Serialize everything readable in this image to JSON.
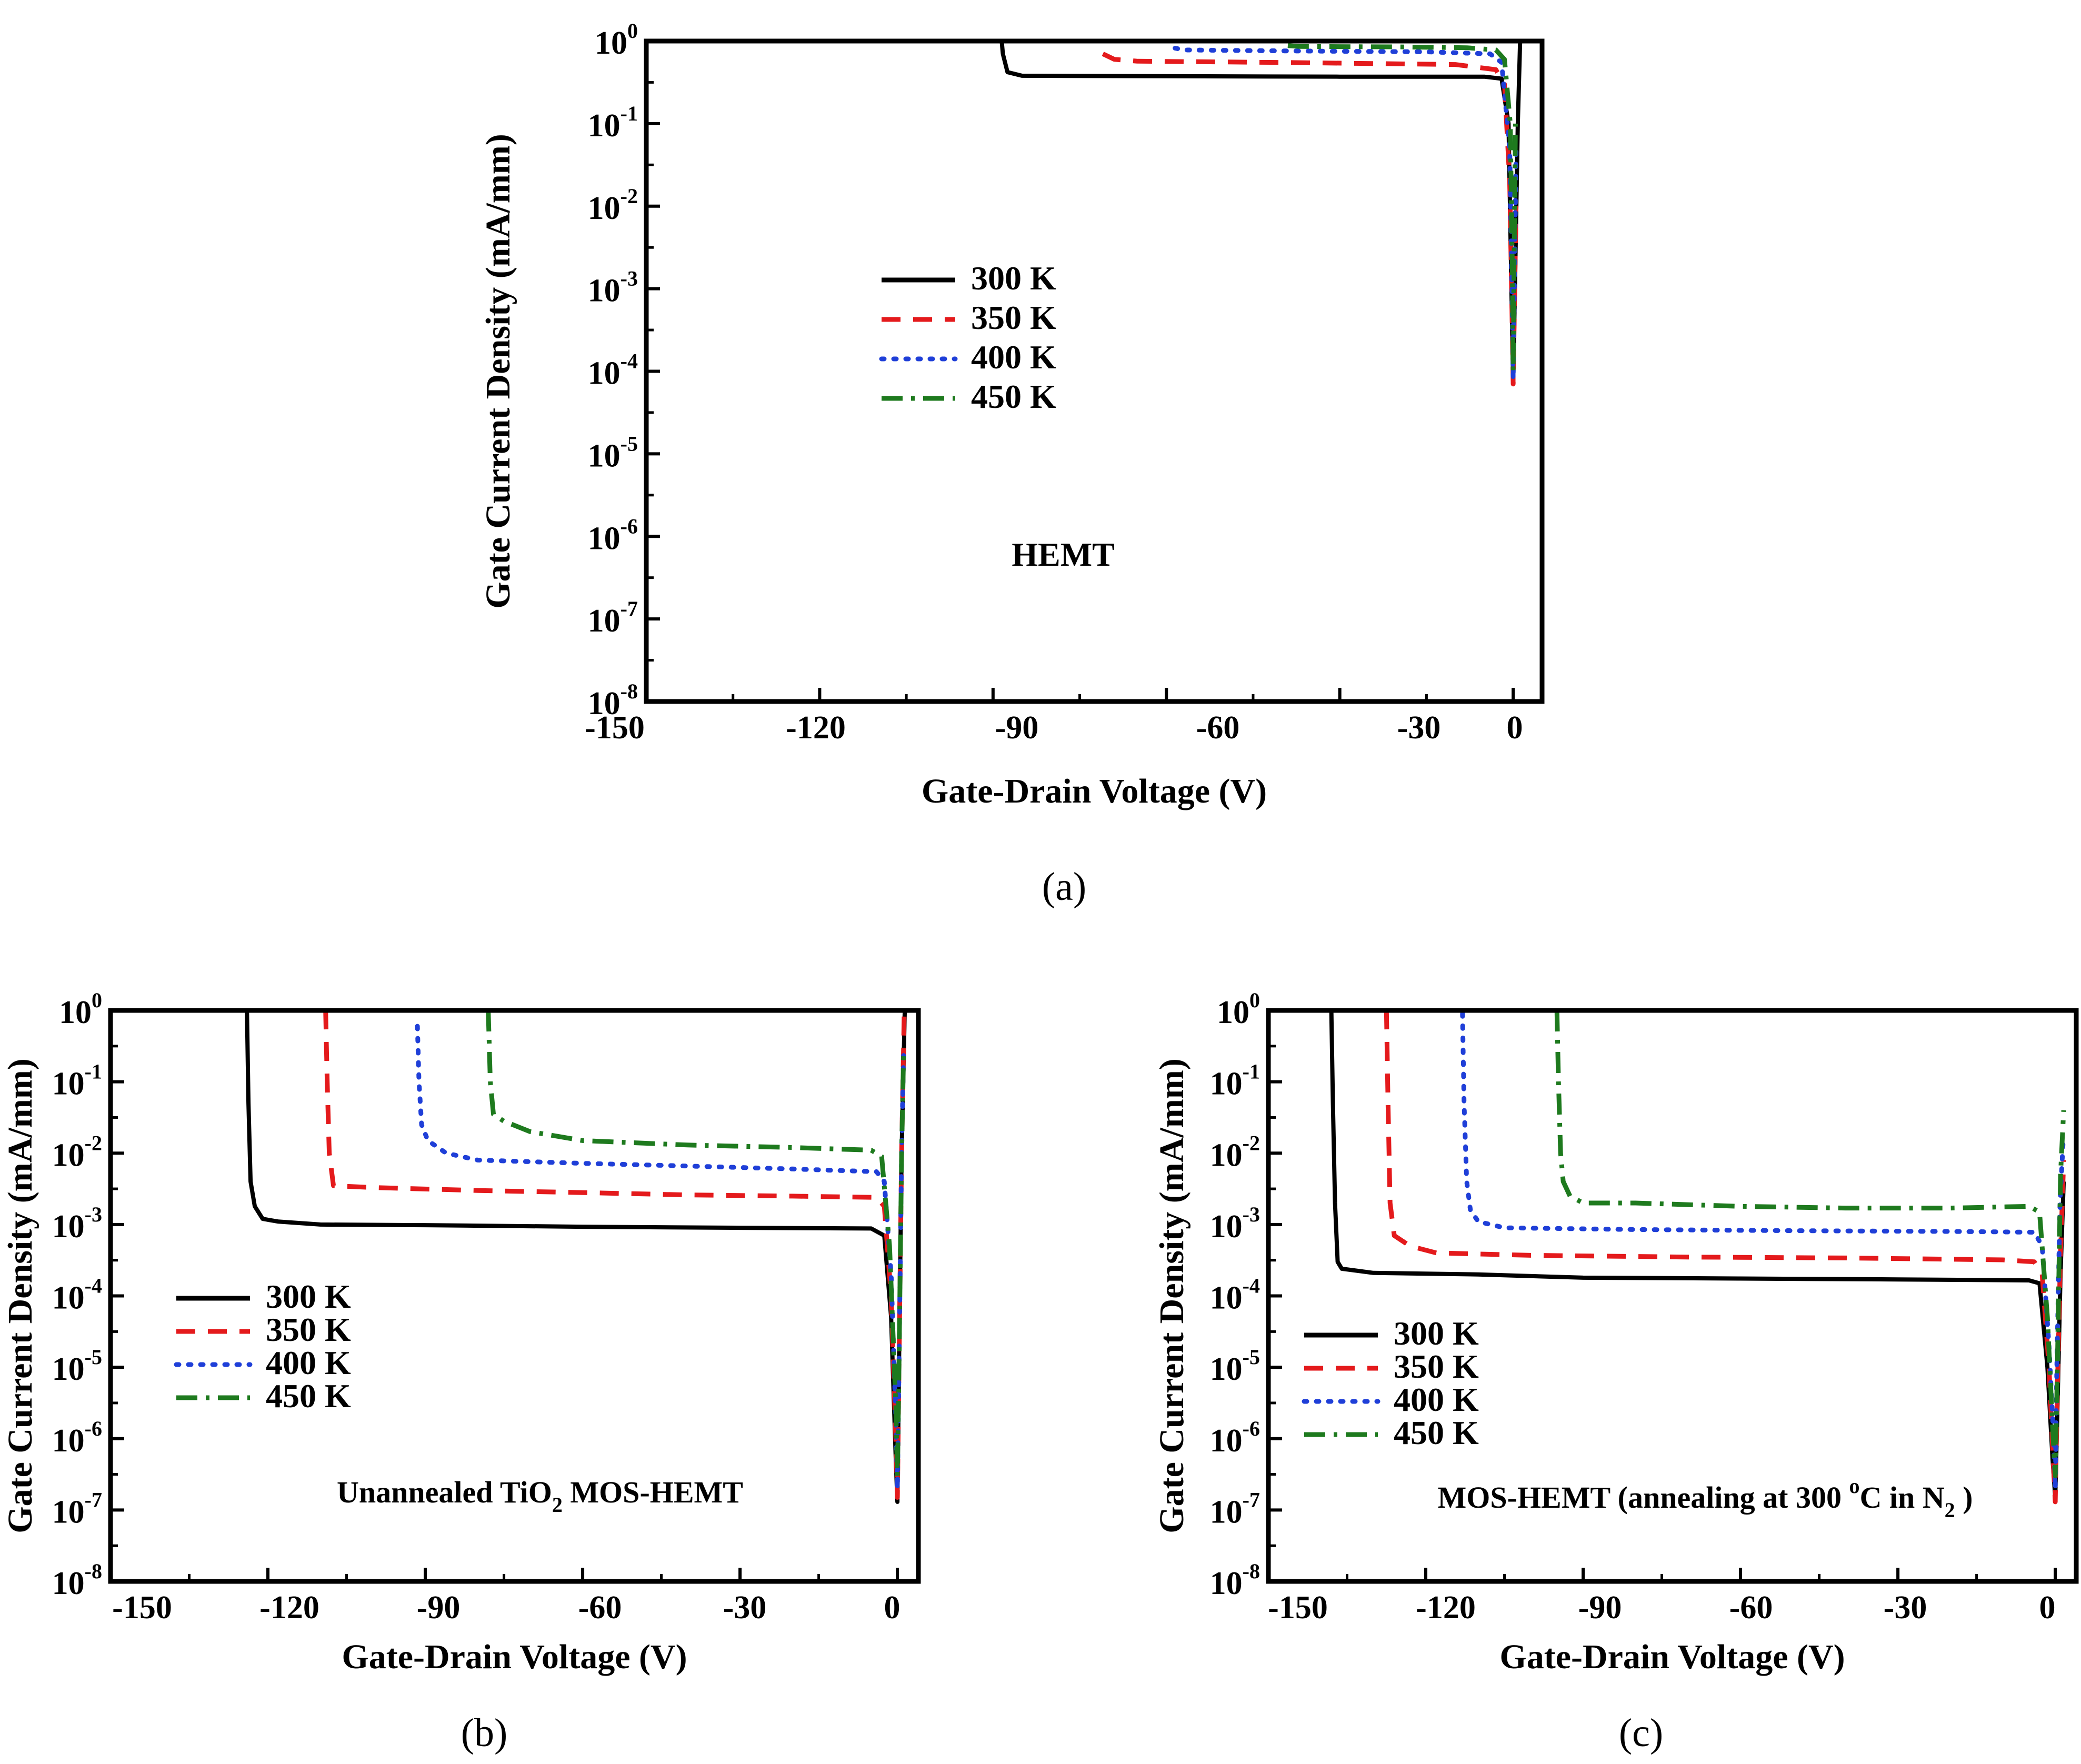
{
  "chart_data": [
    {
      "type": "line",
      "panel": "(a)",
      "annotation": "HEMT",
      "xlabel": "Gate-Drain Voltage (V)",
      "ylabel": "Gate Current Density (mA/mm)",
      "xlim": [
        -150,
        5
      ],
      "ylim_exponent": [
        -8,
        0
      ],
      "y_scale": "log10",
      "x_ticks": [
        "-150",
        "-120",
        "-90",
        "-60",
        "-30",
        "0"
      ],
      "y_ticks": [
        {
          "base": "10",
          "exp": "0"
        },
        {
          "base": "10",
          "exp": "-1"
        },
        {
          "base": "10",
          "exp": "-2"
        },
        {
          "base": "10",
          "exp": "-3"
        },
        {
          "base": "10",
          "exp": "-4"
        },
        {
          "base": "10",
          "exp": "-5"
        },
        {
          "base": "10",
          "exp": "-6"
        },
        {
          "base": "10",
          "exp": "-7"
        },
        {
          "base": "10",
          "exp": "-8"
        }
      ],
      "legend": [
        "300 K",
        "350 K",
        "400 K",
        "450 K"
      ],
      "legend_position": "center",
      "series": [
        {
          "name": "300 K",
          "color": "#000000",
          "style": "solid",
          "points": [
            [
              -88.5,
              1.0
            ],
            [
              -88.3,
              0.7
            ],
            [
              -87.5,
              0.42
            ],
            [
              -85,
              0.38
            ],
            [
              -60,
              0.375
            ],
            [
              -30,
              0.37
            ],
            [
              -5,
              0.37
            ],
            [
              -2,
              0.35
            ],
            [
              -0.8,
              0.1
            ],
            [
              -0.3,
              0.001
            ],
            [
              0,
              7e-05
            ],
            [
              0.3,
              0.001
            ],
            [
              0.8,
              0.1
            ],
            [
              1.2,
              1.0
            ]
          ]
        },
        {
          "name": "350 K",
          "color": "#e41a1c",
          "style": "dashed",
          "points": [
            [
              -71,
              0.7
            ],
            [
              -69,
              0.6
            ],
            [
              -65,
              0.57
            ],
            [
              -40,
              0.55
            ],
            [
              -10,
              0.52
            ],
            [
              -3,
              0.45
            ],
            [
              -1.5,
              0.3
            ],
            [
              -0.6,
              0.02
            ],
            [
              -0.2,
              0.0005
            ],
            [
              0,
              7e-05
            ],
            [
              0.2,
              0.0005
            ],
            [
              0.5,
              0.01
            ]
          ]
        },
        {
          "name": "400 K",
          "color": "#1f3fd8",
          "style": "dotted",
          "points": [
            [
              -58.5,
              0.82
            ],
            [
              -57,
              0.78
            ],
            [
              -40,
              0.76
            ],
            [
              -15,
              0.74
            ],
            [
              -4,
              0.7
            ],
            [
              -2,
              0.55
            ],
            [
              -0.6,
              0.05
            ],
            [
              -0.2,
              0.001
            ],
            [
              0,
              8e-05
            ],
            [
              0.2,
              0.001
            ],
            [
              0.5,
              0.05
            ]
          ]
        },
        {
          "name": "450 K",
          "color": "#1e7a1e",
          "style": "dashdot",
          "points": [
            [
              -39,
              0.88
            ],
            [
              -37,
              0.86
            ],
            [
              -20,
              0.85
            ],
            [
              -8,
              0.83
            ],
            [
              -3,
              0.78
            ],
            [
              -1.5,
              0.6
            ],
            [
              -0.5,
              0.1
            ],
            [
              -0.15,
              0.002
            ],
            [
              0,
              0.0001
            ],
            [
              0.15,
              0.002
            ],
            [
              0.4,
              0.1
            ]
          ]
        }
      ]
    },
    {
      "type": "line",
      "panel": "(b)",
      "annotation_main": "Unannealed TiO",
      "annotation_sub": "2",
      "annotation_tail": " MOS-HEMT",
      "xlabel": "Gate-Drain Voltage (V)",
      "ylabel": "Gate Current Density (mA/mm)",
      "xlim": [
        -150,
        4
      ],
      "ylim_exponent": [
        -8,
        0
      ],
      "y_scale": "log10",
      "x_ticks": [
        "-150",
        "-120",
        "-90",
        "-60",
        "-30",
        "0"
      ],
      "y_ticks": [
        {
          "base": "10",
          "exp": "0"
        },
        {
          "base": "10",
          "exp": "-1"
        },
        {
          "base": "10",
          "exp": "-2"
        },
        {
          "base": "10",
          "exp": "-3"
        },
        {
          "base": "10",
          "exp": "-4"
        },
        {
          "base": "10",
          "exp": "-5"
        },
        {
          "base": "10",
          "exp": "-6"
        },
        {
          "base": "10",
          "exp": "-7"
        },
        {
          "base": "10",
          "exp": "-8"
        }
      ],
      "legend": [
        "300 K",
        "350 K",
        "400 K",
        "450 K"
      ],
      "legend_position": "center-left",
      "series": [
        {
          "name": "300 K",
          "color": "#000000",
          "style": "solid",
          "points": [
            [
              -124,
              1.0
            ],
            [
              -123.7,
              0.05
            ],
            [
              -123.3,
              0.004
            ],
            [
              -122.5,
              0.0018
            ],
            [
              -121,
              0.0012
            ],
            [
              -118,
              0.0011
            ],
            [
              -110,
              0.001
            ],
            [
              -90,
              0.00098
            ],
            [
              -60,
              0.00093
            ],
            [
              -30,
              0.0009
            ],
            [
              -5,
              0.00088
            ],
            [
              -2.5,
              0.0007
            ],
            [
              -1.2,
              5e-05
            ],
            [
              -0.3,
              5e-07
            ],
            [
              0,
              1.3e-07
            ],
            [
              0.3,
              1e-05
            ],
            [
              0.8,
              0.01
            ],
            [
              1.4,
              1.0
            ]
          ]
        },
        {
          "name": "350 K",
          "color": "#e41a1c",
          "style": "dashed",
          "points": [
            [
              -109,
              1.0
            ],
            [
              -108.7,
              0.1
            ],
            [
              -108.3,
              0.01
            ],
            [
              -107.5,
              0.0035
            ],
            [
              -100,
              0.0033
            ],
            [
              -80,
              0.003
            ],
            [
              -60,
              0.0028
            ],
            [
              -40,
              0.0026
            ],
            [
              -20,
              0.0025
            ],
            [
              -4,
              0.0024
            ],
            [
              -2.5,
              0.0018
            ],
            [
              -1.2,
              0.0001
            ],
            [
              -0.3,
              1e-06
            ],
            [
              0,
              1.5e-07
            ],
            [
              0.3,
              1e-05
            ],
            [
              0.8,
              0.01
            ],
            [
              1.3,
              1.0
            ]
          ]
        },
        {
          "name": "400 K",
          "color": "#1f3fd8",
          "style": "dotted",
          "points": [
            [
              -91.5,
              0.6
            ],
            [
              -91.2,
              0.1
            ],
            [
              -90.7,
              0.025
            ],
            [
              -89.5,
              0.015
            ],
            [
              -86,
              0.01
            ],
            [
              -80,
              0.008
            ],
            [
              -60,
              0.0072
            ],
            [
              -40,
              0.0066
            ],
            [
              -20,
              0.006
            ],
            [
              -4,
              0.0055
            ],
            [
              -2.5,
              0.004
            ],
            [
              -1.2,
              0.0002
            ],
            [
              -0.3,
              2e-06
            ],
            [
              0,
              2e-07
            ],
            [
              0.3,
              1e-05
            ],
            [
              0.8,
              0.01
            ],
            [
              1.2,
              0.3
            ]
          ]
        },
        {
          "name": "450 K",
          "color": "#1e7a1e",
          "style": "dashdot",
          "points": [
            [
              -78,
              1.0
            ],
            [
              -77.6,
              0.1
            ],
            [
              -77,
              0.035
            ],
            [
              -75,
              0.028
            ],
            [
              -70,
              0.02
            ],
            [
              -60,
              0.015
            ],
            [
              -40,
              0.013
            ],
            [
              -20,
              0.012
            ],
            [
              -5,
              0.011
            ],
            [
              -3,
              0.009
            ],
            [
              -1.5,
              0.0005
            ],
            [
              -0.3,
              3e-06
            ],
            [
              0,
              3e-07
            ],
            [
              0.3,
              1e-05
            ],
            [
              0.8,
              0.01
            ],
            [
              1.2,
              0.3
            ]
          ]
        }
      ]
    },
    {
      "type": "line",
      "panel": "(c)",
      "annotation_main": "MOS-HEMT (annealing at 300 ",
      "annotation_degree": "o",
      "annotation_mid": "C in N",
      "annotation_sub": "2",
      "annotation_tail": " )",
      "xlabel": "Gate-Drain Voltage (V)",
      "ylabel": "Gate Current Density (mA/mm)",
      "xlim": [
        -150,
        4
      ],
      "ylim_exponent": [
        -8,
        0
      ],
      "y_scale": "log10",
      "x_ticks": [
        "-150",
        "-120",
        "-90",
        "-60",
        "-30",
        "0"
      ],
      "y_ticks": [
        {
          "base": "10",
          "exp": "0"
        },
        {
          "base": "10",
          "exp": "-1"
        },
        {
          "base": "10",
          "exp": "-2"
        },
        {
          "base": "10",
          "exp": "-3"
        },
        {
          "base": "10",
          "exp": "-4"
        },
        {
          "base": "10",
          "exp": "-5"
        },
        {
          "base": "10",
          "exp": "-6"
        },
        {
          "base": "10",
          "exp": "-7"
        },
        {
          "base": "10",
          "exp": "-8"
        }
      ],
      "legend": [
        "300 K",
        "350 K",
        "400 K",
        "450 K"
      ],
      "legend_position": "center-left",
      "series": [
        {
          "name": "300 K",
          "color": "#000000",
          "style": "solid",
          "points": [
            [
              -138,
              1.0
            ],
            [
              -137.7,
              0.05
            ],
            [
              -137.3,
              0.002
            ],
            [
              -136.8,
              0.0003
            ],
            [
              -136,
              0.00024
            ],
            [
              -130,
              0.00021
            ],
            [
              -110,
              0.0002
            ],
            [
              -90,
              0.00018
            ],
            [
              -60,
              0.000175
            ],
            [
              -30,
              0.00017
            ],
            [
              -5,
              0.000165
            ],
            [
              -3,
              0.00015
            ],
            [
              -1.5,
              1e-05
            ],
            [
              -0.5,
              5e-07
            ],
            [
              0,
              1.5e-07
            ],
            [
              0.5,
              5e-06
            ],
            [
              1,
              0.0002
            ],
            [
              1.6,
              0.004
            ]
          ]
        },
        {
          "name": "350 K",
          "color": "#e41a1c",
          "style": "dashed",
          "points": [
            [
              -127.5,
              1.0
            ],
            [
              -127.2,
              0.05
            ],
            [
              -126.8,
              0.002
            ],
            [
              -126,
              0.0007
            ],
            [
              -123,
              0.0005
            ],
            [
              -118,
              0.0004
            ],
            [
              -100,
              0.00037
            ],
            [
              -70,
              0.00035
            ],
            [
              -40,
              0.00034
            ],
            [
              -10,
              0.00032
            ],
            [
              -4,
              0.0003
            ],
            [
              -2.5,
              0.0002
            ],
            [
              -1.2,
              1e-05
            ],
            [
              -0.4,
              5e-07
            ],
            [
              0,
              1.3e-07
            ],
            [
              0.4,
              5e-06
            ],
            [
              1,
              0.0004
            ],
            [
              1.6,
              0.008
            ]
          ]
        },
        {
          "name": "400 K",
          "color": "#1f3fd8",
          "style": "dotted",
          "points": [
            [
              -113,
              0.9
            ],
            [
              -112.7,
              0.05
            ],
            [
              -112.2,
              0.004
            ],
            [
              -111.5,
              0.0016
            ],
            [
              -110,
              0.0011
            ],
            [
              -105,
              0.0009
            ],
            [
              -80,
              0.00085
            ],
            [
              -50,
              0.00082
            ],
            [
              -20,
              0.0008
            ],
            [
              -4,
              0.00078
            ],
            [
              -2.5,
              0.0005
            ],
            [
              -1.2,
              2e-05
            ],
            [
              -0.3,
              1e-06
            ],
            [
              0,
              2e-07
            ],
            [
              0.3,
              1e-05
            ],
            [
              0.9,
              0.002
            ],
            [
              1.5,
              0.015
            ]
          ]
        },
        {
          "name": "450 K",
          "color": "#1e7a1e",
          "style": "dashdot",
          "points": [
            [
              -95,
              1.0
            ],
            [
              -94.7,
              0.1
            ],
            [
              -94.3,
              0.01
            ],
            [
              -93.8,
              0.004
            ],
            [
              -92.5,
              0.0025
            ],
            [
              -90,
              0.002
            ],
            [
              -80,
              0.002
            ],
            [
              -60,
              0.0018
            ],
            [
              -40,
              0.0017
            ],
            [
              -20,
              0.0017
            ],
            [
              -5,
              0.0018
            ],
            [
              -3,
              0.0015
            ],
            [
              -1.5,
              5e-05
            ],
            [
              -0.4,
              1e-06
            ],
            [
              0,
              3e-07
            ],
            [
              0.4,
              1e-05
            ],
            [
              1,
              0.005
            ],
            [
              1.6,
              0.04
            ]
          ]
        }
      ]
    }
  ]
}
